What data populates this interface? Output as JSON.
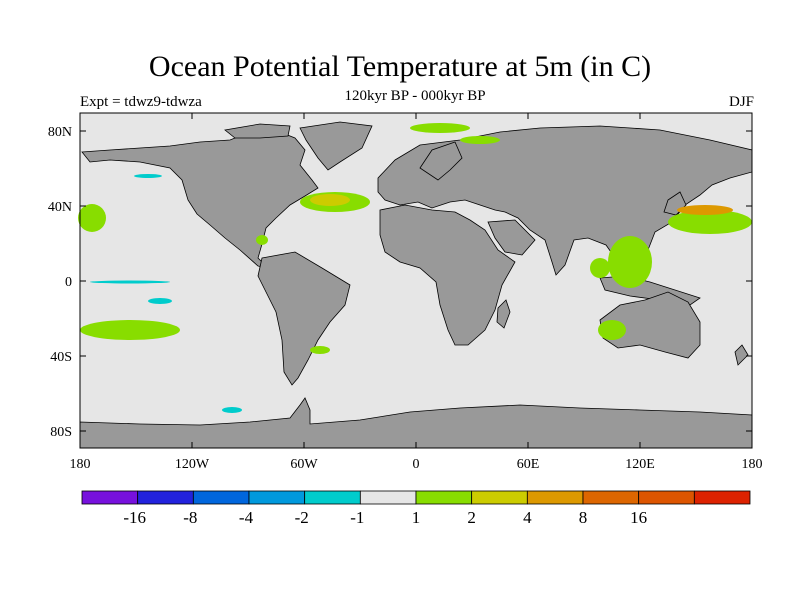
{
  "map": {
    "title": "Ocean Potential Temperature at 5m (in C)",
    "subtitle": "120kyr BP - 000kyr BP",
    "experiment_label": "Expt = tdwz9-tdwza",
    "season_label": "DJF",
    "lat_ticks": [
      "80N",
      "40N",
      "0",
      "40S",
      "80S"
    ],
    "lon_ticks": [
      "180",
      "120W",
      "60W",
      "0",
      "60E",
      "120E",
      "180"
    ],
    "colors": {
      "land": "#999999",
      "ocean_neutral": "#e6e6e6",
      "warm_1_2": "#88dd00",
      "warm_2_4": "#cccc00",
      "warm_4_8": "#dd9900",
      "cool_minus2_minus1": "#00cccc"
    }
  },
  "colorbar": {
    "colors": [
      "#7711dd",
      "#2222dd",
      "#0066dd",
      "#0099dd",
      "#00cccc",
      "#e6e6e6",
      "#88dd00",
      "#cccc00",
      "#dd9900",
      "#dd6600",
      "#dd5500",
      "#dd2200"
    ],
    "labels": [
      "-16",
      "-8",
      "-4",
      "-2",
      "-1",
      "1",
      "2",
      "4",
      "8",
      "16"
    ]
  }
}
